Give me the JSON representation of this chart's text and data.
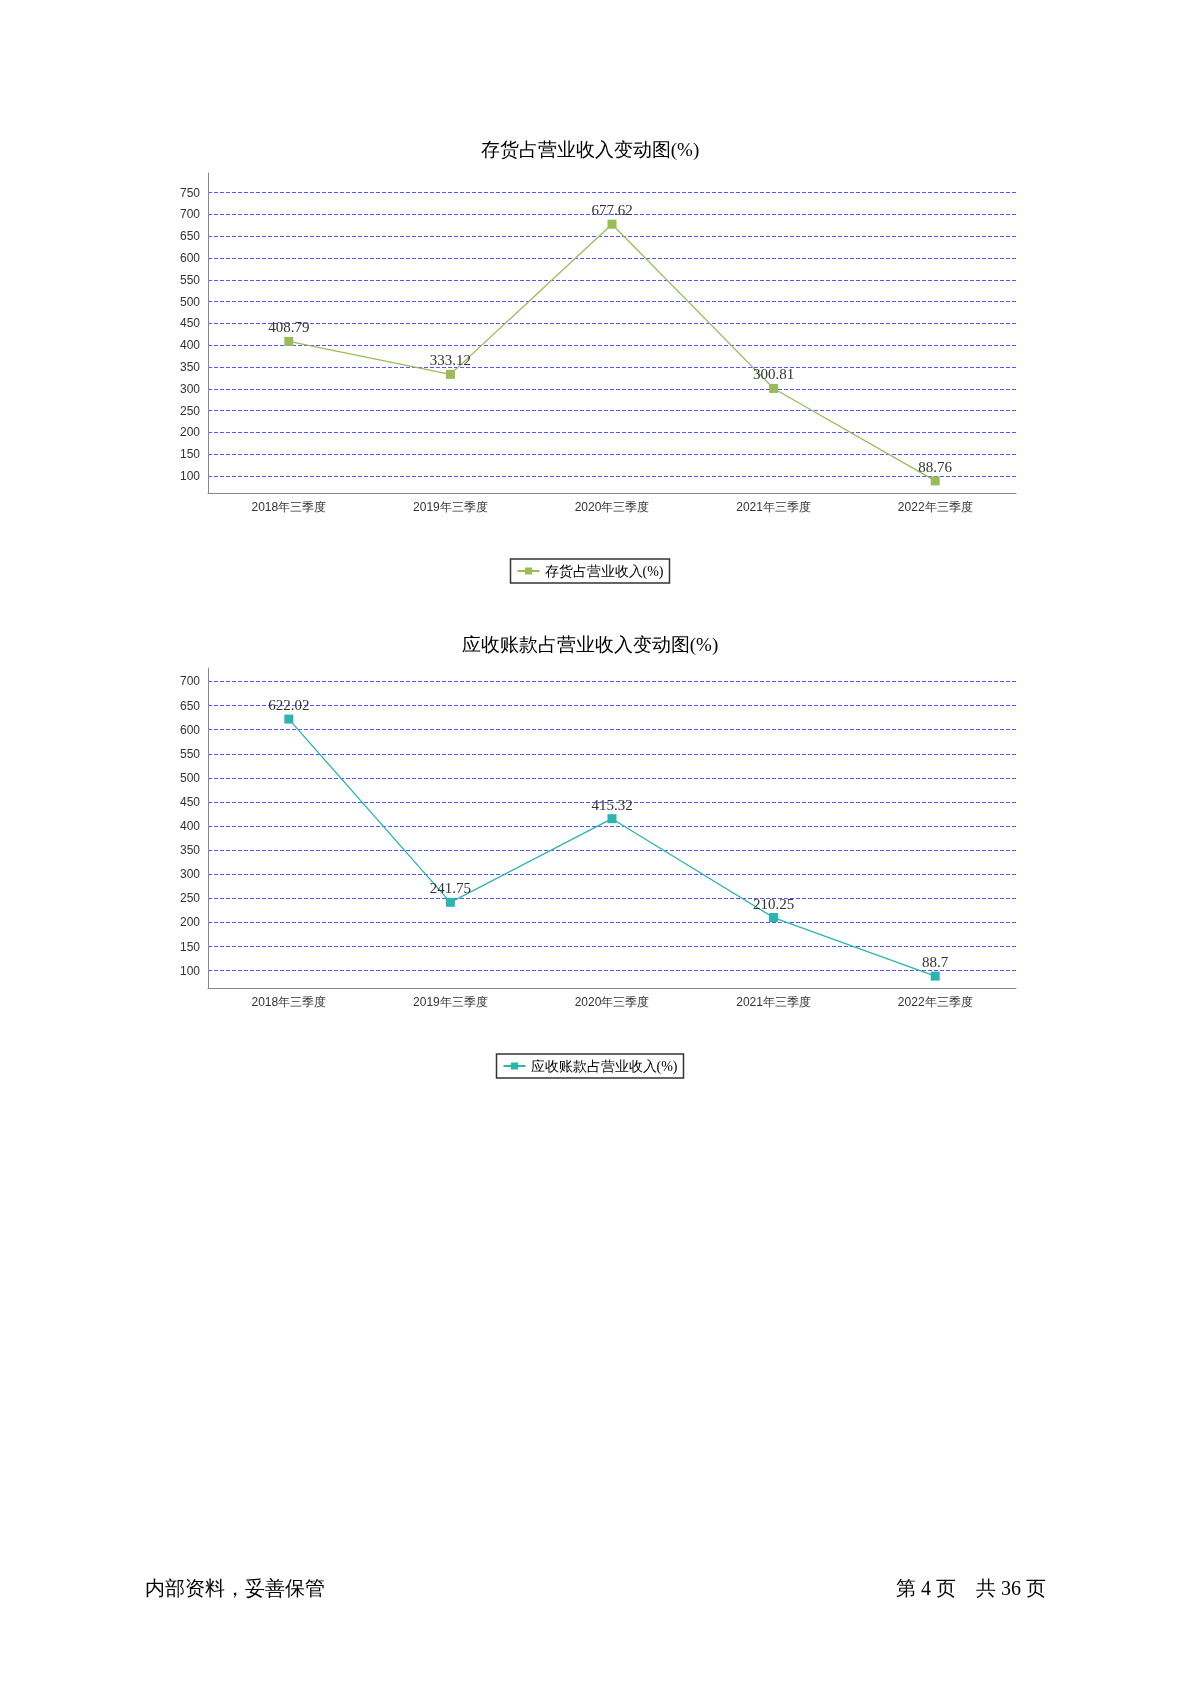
{
  "chart_data": [
    {
      "type": "line",
      "title": "存货占营业收入变动图(%)",
      "categories": [
        "2018年三季度",
        "2019年三季度",
        "2020年三季度",
        "2021年三季度",
        "2022年三季度"
      ],
      "series": [
        {
          "name": "存货占营业收入(%)",
          "color": "#9bbb59",
          "values": [
            408.79,
            333.12,
            677.62,
            300.81,
            88.76
          ]
        }
      ],
      "ylim": [
        61,
        795
      ],
      "yticks": [
        100,
        150,
        200,
        250,
        300,
        350,
        400,
        450,
        500,
        550,
        600,
        650,
        700,
        750
      ],
      "grid": "y",
      "legend": "bottom",
      "marker": "square",
      "line_style": "solid",
      "data_labels": true
    },
    {
      "type": "line",
      "title": "应收账款占营业收入变动图(%)",
      "categories": [
        "2018年三季度",
        "2019年三季度",
        "2020年三季度",
        "2021年三季度",
        "2022年三季度"
      ],
      "series": [
        {
          "name": "应收账款占营业收入(%)",
          "color": "#2cb5ad",
          "values": [
            622.02,
            241.75,
            415.32,
            210.25,
            88.7
          ]
        }
      ],
      "ylim": [
        64,
        728
      ],
      "yticks": [
        100,
        150,
        200,
        250,
        300,
        350,
        400,
        450,
        500,
        550,
        600,
        650,
        700
      ],
      "grid": "y",
      "legend": "bottom",
      "marker": "square",
      "line_style": "solid",
      "data_labels": true,
      "annotations": [
        "内部资料，妥善保管",
        "第 4 页　共 36 页"
      ]
    }
  ]
}
